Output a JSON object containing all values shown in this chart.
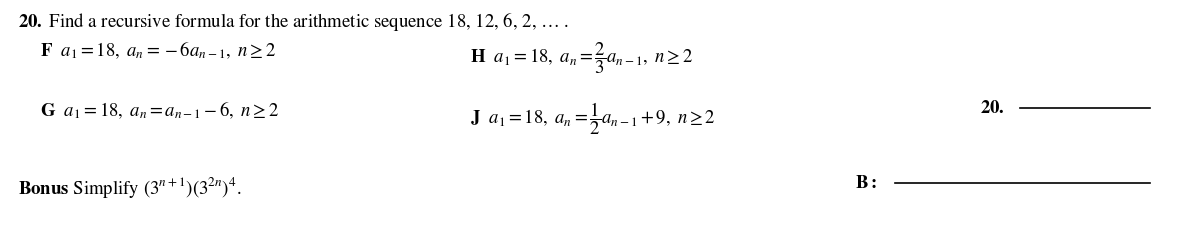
{
  "bg_color": "#ffffff",
  "text_color": "#000000",
  "figsize": [
    12.0,
    2.52
  ],
  "dpi": 100,
  "fs_main": 13.5
}
